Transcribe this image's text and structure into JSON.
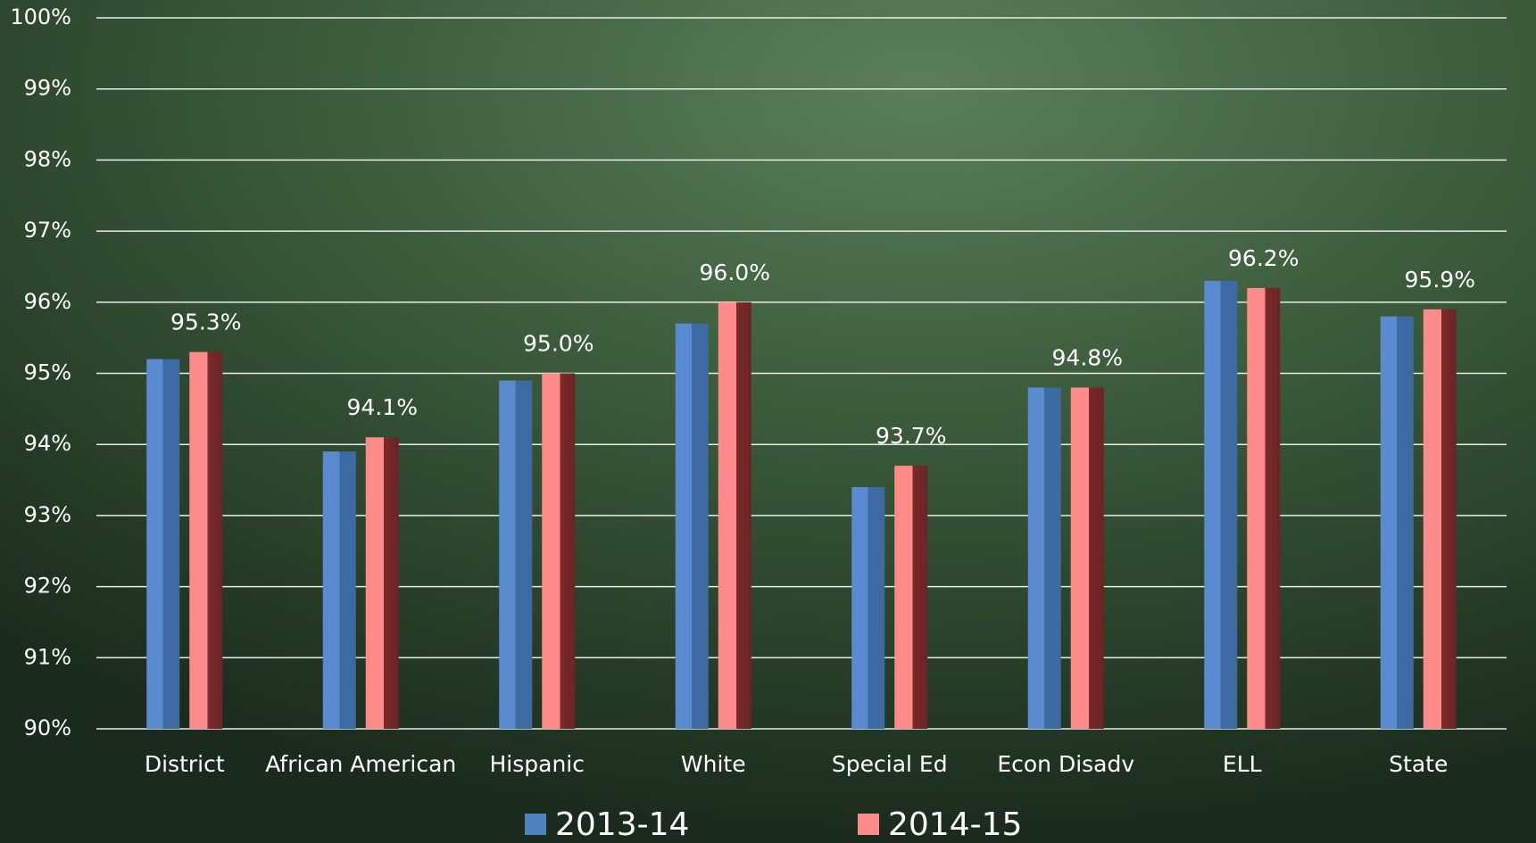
{
  "chart_data": {
    "type": "bar",
    "categories": [
      "District",
      "African American",
      "Hispanic",
      "White",
      "Special Ed",
      "Econ Disadv",
      "ELL",
      "State"
    ],
    "series": [
      {
        "name": "2013-14",
        "color": "#4f81bd",
        "values": [
          95.2,
          93.9,
          94.9,
          95.7,
          93.4,
          94.8,
          96.3,
          95.8
        ]
      },
      {
        "name": "2014-15",
        "color": "#ff8a8a",
        "values": [
          95.3,
          94.1,
          95.0,
          96.0,
          93.7,
          94.8,
          96.2,
          95.9
        ],
        "value_labels": [
          "95.3%",
          "94.1%",
          "95.0%",
          "96.0%",
          "93.7%",
          "94.8%",
          "96.2%",
          "95.9%"
        ]
      }
    ],
    "ylim": [
      90,
      100
    ],
    "yticks": [
      {
        "value": 90,
        "label": "90%"
      },
      {
        "value": 91,
        "label": "91%"
      },
      {
        "value": 92,
        "label": "92%"
      },
      {
        "value": 93,
        "label": "93%"
      },
      {
        "value": 94,
        "label": "94%"
      },
      {
        "value": 95,
        "label": "95%"
      },
      {
        "value": 96,
        "label": "96%"
      },
      {
        "value": 97,
        "label": "97%"
      },
      {
        "value": 98,
        "label": "98%"
      },
      {
        "value": 99,
        "label": "99%"
      },
      {
        "value": 100,
        "label": "100%"
      }
    ],
    "grid": true,
    "legend": "bottom"
  }
}
